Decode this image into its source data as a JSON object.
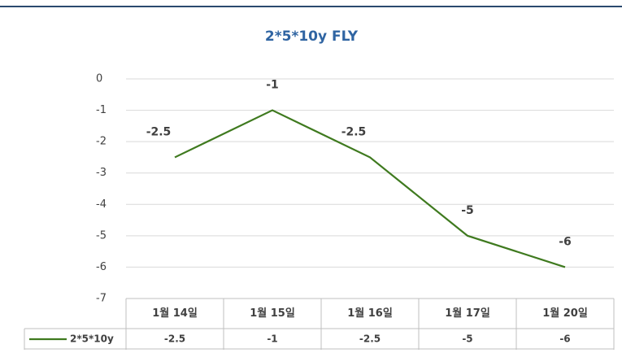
{
  "chart_data": {
    "type": "line",
    "title": "2*5*10y FLY",
    "categories": [
      "1월 14일",
      "1월 15일",
      "1월 16일",
      "1월 17일",
      "1월 20일"
    ],
    "series": [
      {
        "name": "2*5*10y",
        "color": "#3f7a1f",
        "values": [
          -2.5,
          -1,
          -2.5,
          -5,
          -6
        ]
      }
    ],
    "ylim": [
      -7,
      0
    ],
    "yticks": [
      0,
      -1,
      -2,
      -3,
      -4,
      -5,
      -6,
      -7
    ],
    "grid": true,
    "data_table": true
  }
}
